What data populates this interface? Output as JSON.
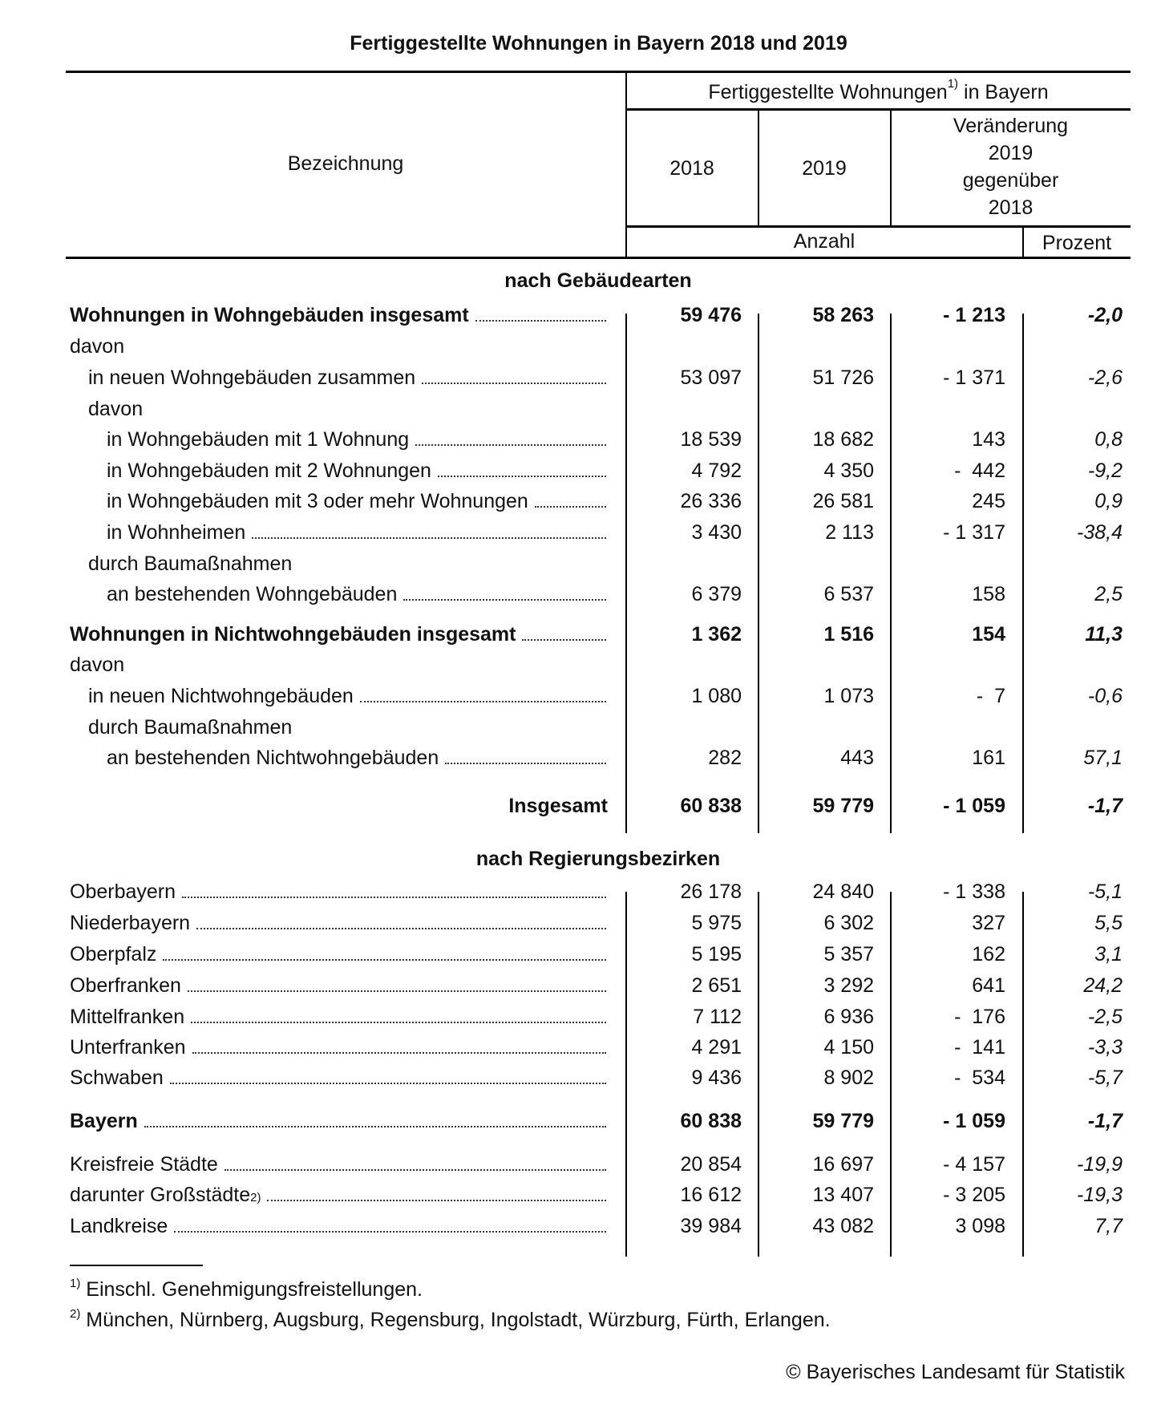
{
  "title": "Fertiggestellte Wohnungen in Bayern 2018 und 2019",
  "header": {
    "bezeichnung": "Bezeichnung",
    "group_label": "Fertiggestellte Wohnungen",
    "group_sup": "1)",
    "group_suffix": " in Bayern",
    "col_2018": "2018",
    "col_2019": "2019",
    "col_change_lines": [
      "Veränderung",
      "2019",
      "gegenüber",
      "2018"
    ],
    "unit_count": "Anzahl",
    "unit_percent": "Prozent"
  },
  "sections": [
    {
      "heading": "nach Gebäudearten",
      "rows": [
        {
          "label": "Wohnungen in Wohngebäuden insgesamt",
          "indent": 0,
          "bold": true,
          "leader": true,
          "v2018": "59 476",
          "v2019": "58 263",
          "diff": "- 1 213",
          "pct": "-2,0"
        },
        {
          "label": "davon",
          "indent": 0,
          "leader": false
        },
        {
          "label": "in neuen Wohngebäuden zusammen",
          "indent": 1,
          "leader": true,
          "v2018": "53 097",
          "v2019": "51 726",
          "diff": "- 1 371",
          "pct": "-2,6"
        },
        {
          "label": "davon",
          "indent": 1,
          "leader": false
        },
        {
          "label": "in Wohngebäuden mit 1 Wohnung",
          "indent": 2,
          "leader": true,
          "v2018": "18 539",
          "v2019": "18 682",
          "diff": "143",
          "pct": "0,8"
        },
        {
          "label": "in Wohngebäuden mit 2 Wohnungen",
          "indent": 2,
          "leader": true,
          "v2018": "4 792",
          "v2019": "4 350",
          "diff": "-  442",
          "pct": "-9,2"
        },
        {
          "label": "in Wohngebäuden mit 3 oder mehr Wohnungen",
          "indent": 2,
          "leader": true,
          "v2018": "26 336",
          "v2019": "26 581",
          "diff": "245",
          "pct": "0,9"
        },
        {
          "label": "in Wohnheimen",
          "indent": 2,
          "leader": true,
          "v2018": "3 430",
          "v2019": "2 113",
          "diff": "- 1 317",
          "pct": "-38,4"
        },
        {
          "label": "durch Baumaßnahmen",
          "indent": 1,
          "leader": false
        },
        {
          "label": "an bestehenden Wohngebäuden",
          "indent": 2,
          "leader": true,
          "v2018": "6 379",
          "v2019": "6 537",
          "diff": "158",
          "pct": "2,5"
        },
        {
          "label": "Wohnungen in Nichtwohngebäuden insgesamt",
          "indent": 0,
          "bold": true,
          "leader": true,
          "v2018": "1 362",
          "v2019": "1 516",
          "diff": "154",
          "pct": "11,3"
        },
        {
          "label": "davon",
          "indent": 0,
          "leader": false
        },
        {
          "label": "in neuen Nichtwohngebäuden",
          "indent": 1,
          "leader": true,
          "v2018": "1 080",
          "v2019": "1 073",
          "diff": "-  7",
          "pct": "-0,6"
        },
        {
          "label": "durch Baumaßnahmen",
          "indent": 1,
          "leader": false
        },
        {
          "label": "an bestehenden Nichtwohngebäuden",
          "indent": 2,
          "leader": true,
          "v2018": "282",
          "v2019": "443",
          "diff": "161",
          "pct": "57,1"
        },
        {
          "label": "Insgesamt",
          "indent": 0,
          "bold": true,
          "right": true,
          "leader": false,
          "v2018": "60 838",
          "v2019": "59 779",
          "diff": "- 1 059",
          "pct": "-1,7"
        }
      ]
    },
    {
      "heading": "nach Regierungsbezirken",
      "rows": [
        {
          "label": "Oberbayern",
          "indent": 0,
          "leader": true,
          "v2018": "26 178",
          "v2019": "24 840",
          "diff": "- 1 338",
          "pct": "-5,1"
        },
        {
          "label": "Niederbayern",
          "indent": 0,
          "leader": true,
          "v2018": "5 975",
          "v2019": "6 302",
          "diff": "327",
          "pct": "5,5"
        },
        {
          "label": "Oberpfalz",
          "indent": 0,
          "leader": true,
          "v2018": "5 195",
          "v2019": "5 357",
          "diff": "162",
          "pct": "3,1"
        },
        {
          "label": "Oberfranken",
          "indent": 0,
          "leader": true,
          "v2018": "2 651",
          "v2019": "3 292",
          "diff": "641",
          "pct": "24,2"
        },
        {
          "label": "Mittelfranken",
          "indent": 0,
          "leader": true,
          "v2018": "7 112",
          "v2019": "6 936",
          "diff": "-  176",
          "pct": "-2,5"
        },
        {
          "label": "Unterfranken",
          "indent": 0,
          "leader": true,
          "v2018": "4 291",
          "v2019": "4 150",
          "diff": "-  141",
          "pct": "-3,3"
        },
        {
          "label": "Schwaben",
          "indent": 0,
          "leader": true,
          "v2018": "9 436",
          "v2019": "8 902",
          "diff": "-  534",
          "pct": "-5,7"
        },
        {
          "label": "Bayern",
          "indent": 0,
          "bold": true,
          "leader": true,
          "v2018": "60 838",
          "v2019": "59 779",
          "diff": "- 1 059",
          "pct": "-1,7"
        },
        {
          "label": "Kreisfreie Städte",
          "indent": 0,
          "leader": true,
          "v2018": "20 854",
          "v2019": "16 697",
          "diff": "- 4 157",
          "pct": "-19,9"
        },
        {
          "label": "darunter Großstädte",
          "sup": "2)",
          "indent": 0,
          "leader": true,
          "v2018": "16 612",
          "v2019": "13 407",
          "diff": "- 3 205",
          "pct": "-19,3"
        },
        {
          "label": "Landkreise",
          "indent": 0,
          "leader": true,
          "v2018": "39 984",
          "v2019": "43 082",
          "diff": "3 098",
          "pct": "7,7"
        }
      ]
    }
  ],
  "footnotes": [
    {
      "mark": "1)",
      "text": "Einschl. Genehmigungsfreistellungen."
    },
    {
      "mark": "2)",
      "text": "München, Nürnberg, Augsburg, Regensburg, Ingolstadt, Würzburg, Fürth, Erlangen."
    }
  ],
  "copyright": "© Bayerisches Landesamt für Statistik"
}
